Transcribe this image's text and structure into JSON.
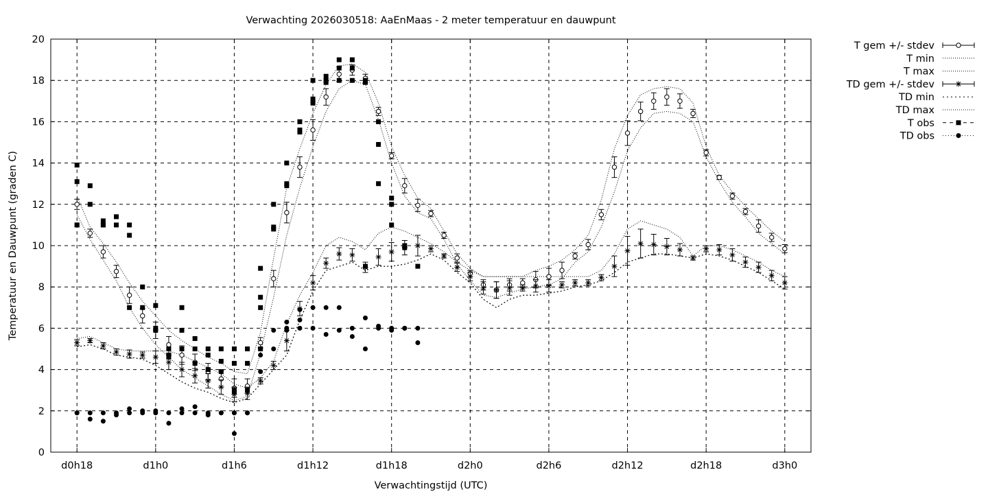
{
  "chart_data": {
    "type": "line",
    "title": "Verwachting 2026030518: AaEnMaas - 2 meter temperatuur en dauwpunt",
    "xlabel": "Verwachtingstijd (UTC)",
    "ylabel": "Temperatuur en Dauwpunt (graden C)",
    "xlim": [
      16,
      74
    ],
    "ylim": [
      0,
      20
    ],
    "grid": true,
    "legend_position": "outside-right",
    "x_ticks": [
      {
        "x": 18,
        "label": "d0h18"
      },
      {
        "x": 24,
        "label": "d1h0"
      },
      {
        "x": 30,
        "label": "d1h6"
      },
      {
        "x": 36,
        "label": "d1h12"
      },
      {
        "x": 42,
        "label": "d1h18"
      },
      {
        "x": 48,
        "label": "d2h0"
      },
      {
        "x": 54,
        "label": "d2h6"
      },
      {
        "x": 60,
        "label": "d2h12"
      },
      {
        "x": 66,
        "label": "d2h18"
      },
      {
        "x": 72,
        "label": "d3h0"
      }
    ],
    "y_ticks": [
      "0",
      "2",
      "4",
      "6",
      "8",
      "10",
      "12",
      "14",
      "16",
      "18",
      "20"
    ],
    "legend": [
      "T gem +/- stdev",
      "T min",
      "T max",
      "TD gem +/- stdev",
      "TD min",
      "TD max",
      "T obs",
      "TD obs"
    ],
    "series": [
      {
        "name": "T gem +/- stdev",
        "x": [
          18,
          19,
          20,
          21,
          22,
          23,
          24,
          25,
          26,
          27,
          28,
          29,
          30,
          31,
          32,
          33,
          34,
          35,
          36,
          37,
          38,
          39,
          40,
          41,
          42,
          43,
          44,
          45,
          46,
          47,
          48,
          49,
          50,
          51,
          52,
          53,
          54,
          55,
          56,
          57,
          58,
          59,
          60,
          61,
          62,
          63,
          64,
          65,
          66,
          67,
          68,
          69,
          70,
          71,
          72
        ],
        "y": [
          12.0,
          10.6,
          9.7,
          8.75,
          7.6,
          6.6,
          5.9,
          5.2,
          4.7,
          4.35,
          3.9,
          3.55,
          3.1,
          3.2,
          5.3,
          8.4,
          11.6,
          13.8,
          15.6,
          17.2,
          18.3,
          18.5,
          18.1,
          16.5,
          14.35,
          12.9,
          11.95,
          11.55,
          10.5,
          9.4,
          8.65,
          8.1,
          7.85,
          8.1,
          8.2,
          8.35,
          8.5,
          8.8,
          9.5,
          10.05,
          11.5,
          13.8,
          15.45,
          16.5,
          17.0,
          17.2,
          17.0,
          16.4,
          14.5,
          13.3,
          12.4,
          11.65,
          10.95,
          10.4,
          9.85
        ],
        "stdev": [
          0.25,
          0.2,
          0.3,
          0.3,
          0.4,
          0.35,
          0.4,
          0.4,
          0.45,
          0.4,
          0.4,
          0.4,
          0.45,
          0.35,
          0.25,
          0.4,
          0.5,
          0.5,
          0.5,
          0.4,
          0.35,
          0.25,
          0.2,
          0.2,
          0.15,
          0.35,
          0.3,
          0.15,
          0.15,
          0.2,
          0.15,
          0.25,
          0.4,
          0.3,
          0.2,
          0.4,
          0.4,
          0.4,
          0.15,
          0.25,
          0.25,
          0.5,
          0.6,
          0.45,
          0.4,
          0.4,
          0.35,
          0.2,
          0.15,
          0.1,
          0.15,
          0.15,
          0.3,
          0.2,
          0.2
        ]
      },
      {
        "name": "T min",
        "x": [
          18,
          19,
          20,
          21,
          22,
          23,
          24,
          25,
          26,
          27,
          28,
          29,
          30,
          31,
          32,
          33,
          34,
          35,
          36,
          37,
          38,
          39,
          40,
          41,
          42,
          43,
          44,
          45,
          46,
          47,
          48,
          49,
          50,
          51,
          52,
          53,
          54,
          55,
          56,
          57,
          58,
          59,
          60,
          61,
          62,
          63,
          64,
          65,
          66,
          67,
          68,
          69,
          70,
          71,
          72
        ],
        "y": [
          11.5,
          10.3,
          9.3,
          8.3,
          7.0,
          6.0,
          5.2,
          4.6,
          4.0,
          3.6,
          3.2,
          2.8,
          2.5,
          2.7,
          4.8,
          7.5,
          10.5,
          12.8,
          14.8,
          16.5,
          17.6,
          18.0,
          17.8,
          16.1,
          14.0,
          12.4,
          11.6,
          11.3,
          10.3,
          9.1,
          8.3,
          7.6,
          7.5,
          7.7,
          7.9,
          8.0,
          8.1,
          8.4,
          9.2,
          9.7,
          10.9,
          12.6,
          14.6,
          15.7,
          16.4,
          16.5,
          16.4,
          16.0,
          14.3,
          13.1,
          12.1,
          11.4,
          10.6,
          10.1,
          9.6
        ]
      },
      {
        "name": "T max",
        "x": [
          18,
          19,
          20,
          21,
          22,
          23,
          24,
          25,
          26,
          27,
          28,
          29,
          30,
          31,
          32,
          33,
          34,
          35,
          36,
          37,
          38,
          39,
          40,
          41,
          42,
          43,
          44,
          45,
          46,
          47,
          48,
          49,
          50,
          51,
          52,
          53,
          54,
          55,
          56,
          57,
          58,
          59,
          60,
          61,
          62,
          63,
          64,
          65,
          66,
          67,
          68,
          69,
          70,
          71,
          72
        ],
        "y": [
          12.4,
          10.9,
          10.1,
          9.2,
          8.2,
          7.3,
          6.6,
          5.9,
          5.4,
          5.0,
          4.6,
          4.3,
          3.9,
          3.8,
          5.8,
          9.4,
          12.8,
          14.7,
          16.4,
          17.8,
          18.7,
          18.8,
          18.4,
          16.9,
          14.8,
          13.4,
          12.3,
          11.8,
          10.7,
          9.6,
          8.9,
          8.5,
          8.5,
          8.5,
          8.5,
          8.8,
          9.0,
          9.3,
          9.8,
          10.5,
          12.2,
          14.7,
          16.3,
          17.3,
          17.6,
          17.7,
          17.6,
          16.9,
          14.8,
          13.4,
          12.6,
          11.9,
          11.3,
          10.7,
          10.2
        ]
      },
      {
        "name": "TD gem +/- stdev",
        "x": [
          18,
          19,
          20,
          21,
          22,
          23,
          24,
          25,
          26,
          27,
          28,
          29,
          30,
          31,
          32,
          33,
          34,
          35,
          36,
          37,
          38,
          39,
          40,
          41,
          42,
          43,
          44,
          45,
          46,
          47,
          48,
          49,
          50,
          51,
          52,
          53,
          54,
          55,
          56,
          57,
          58,
          59,
          60,
          61,
          62,
          63,
          64,
          65,
          66,
          67,
          68,
          69,
          70,
          71,
          72
        ],
        "y": [
          5.3,
          5.4,
          5.15,
          4.85,
          4.75,
          4.7,
          4.6,
          4.35,
          4.0,
          3.7,
          3.45,
          3.15,
          2.8,
          2.85,
          3.45,
          4.2,
          5.4,
          6.95,
          8.2,
          9.15,
          9.6,
          9.55,
          8.95,
          9.45,
          9.7,
          9.9,
          10.0,
          9.85,
          9.5,
          8.95,
          8.5,
          7.95,
          7.85,
          7.95,
          7.95,
          8.05,
          8.05,
          8.1,
          8.2,
          8.2,
          8.45,
          9.0,
          9.75,
          10.1,
          10.05,
          9.95,
          9.8,
          9.4,
          9.85,
          9.8,
          9.55,
          9.2,
          8.95,
          8.55,
          8.2
        ],
        "stdev": [
          0.15,
          0.1,
          0.15,
          0.15,
          0.2,
          0.15,
          0.3,
          0.35,
          0.35,
          0.35,
          0.35,
          0.35,
          0.35,
          0.3,
          0.15,
          0.2,
          0.5,
          0.35,
          0.35,
          0.25,
          0.3,
          0.3,
          0.25,
          0.4,
          0.45,
          0.35,
          0.5,
          0.15,
          0.1,
          0.2,
          0.2,
          0.3,
          0.4,
          0.35,
          0.15,
          0.3,
          0.3,
          0.15,
          0.15,
          0.15,
          0.15,
          0.5,
          0.7,
          0.7,
          0.5,
          0.4,
          0.3,
          0.1,
          0.15,
          0.25,
          0.3,
          0.25,
          0.25,
          0.25,
          0.3
        ]
      },
      {
        "name": "TD min",
        "x": [
          18,
          19,
          20,
          21,
          22,
          23,
          24,
          25,
          26,
          27,
          28,
          29,
          30,
          31,
          32,
          33,
          34,
          35,
          36,
          37,
          38,
          39,
          40,
          41,
          42,
          43,
          44,
          45,
          46,
          47,
          48,
          49,
          50,
          51,
          52,
          53,
          54,
          55,
          56,
          57,
          58,
          59,
          60,
          61,
          62,
          63,
          64,
          65,
          66,
          67,
          68,
          69,
          70,
          71,
          72
        ],
        "y": [
          5.1,
          5.2,
          5.0,
          4.7,
          4.6,
          4.5,
          4.2,
          3.8,
          3.4,
          3.1,
          2.9,
          2.6,
          2.4,
          2.6,
          3.3,
          4.0,
          4.7,
          6.4,
          7.8,
          8.8,
          9.0,
          9.2,
          8.8,
          9.0,
          9.0,
          9.1,
          9.3,
          9.6,
          9.3,
          8.7,
          8.2,
          7.4,
          7.0,
          7.4,
          7.6,
          7.6,
          7.7,
          7.8,
          8.0,
          8.1,
          8.3,
          8.7,
          9.2,
          9.4,
          9.6,
          9.6,
          9.5,
          9.4,
          9.6,
          9.5,
          9.3,
          9.0,
          8.7,
          8.3,
          7.9
        ]
      },
      {
        "name": "TD max",
        "x": [
          18,
          19,
          20,
          21,
          22,
          23,
          24,
          25,
          26,
          27,
          28,
          29,
          30,
          31,
          32,
          33,
          34,
          35,
          36,
          37,
          38,
          39,
          40,
          41,
          42,
          43,
          44,
          45,
          46,
          47,
          48,
          49,
          50,
          51,
          52,
          53,
          54,
          55,
          56,
          57,
          58,
          59,
          60,
          61,
          62,
          63,
          64,
          65,
          66,
          67,
          68,
          69,
          70,
          71,
          72
        ],
        "y": [
          5.5,
          5.6,
          5.3,
          5.0,
          4.9,
          4.9,
          4.9,
          4.9,
          4.7,
          4.4,
          4.1,
          3.8,
          3.3,
          3.1,
          3.6,
          4.4,
          6.2,
          7.6,
          8.7,
          10.0,
          10.4,
          10.2,
          9.8,
          10.6,
          10.9,
          10.7,
          10.4,
          10.1,
          9.7,
          9.2,
          8.8,
          8.5,
          8.5,
          8.5,
          8.5,
          8.5,
          8.5,
          8.5,
          8.5,
          8.5,
          8.8,
          9.6,
          10.8,
          11.2,
          11.0,
          10.8,
          10.4,
          9.5,
          10.0,
          10.0,
          9.8,
          9.5,
          9.2,
          8.8,
          8.5
        ]
      },
      {
        "name": "T obs",
        "x": [
          18,
          18,
          18,
          18,
          19,
          19,
          20,
          20,
          20,
          21,
          21,
          22,
          22,
          22,
          23,
          23,
          24,
          24,
          24,
          25,
          25,
          25,
          26,
          26,
          26,
          27,
          27,
          27,
          28,
          28,
          28,
          29,
          29,
          29,
          30,
          30,
          30,
          30,
          31,
          31,
          31,
          32,
          32,
          32,
          32,
          33,
          33,
          33,
          34,
          34,
          34,
          35,
          35,
          35,
          36,
          36,
          36,
          36,
          37,
          37,
          37,
          38,
          38,
          38,
          39,
          39,
          39,
          40,
          40,
          40,
          41,
          41,
          41,
          42,
          42,
          42,
          43,
          43,
          44
        ],
        "y": [
          13.9,
          13.1,
          11.0,
          11.0,
          12.9,
          12.0,
          11.2,
          11.0,
          11.0,
          11.4,
          11.0,
          11.0,
          10.5,
          7.0,
          8.0,
          7.0,
          7.1,
          6.0,
          5.9,
          5.0,
          4.7,
          4.6,
          7.0,
          5.9,
          5.0,
          5.5,
          5.0,
          4.3,
          5.0,
          4.7,
          4.0,
          5.0,
          4.4,
          3.9,
          5.0,
          4.3,
          3.0,
          2.9,
          5.0,
          4.3,
          3.0,
          8.9,
          7.5,
          7.0,
          5.0,
          12.0,
          10.9,
          10.8,
          14.0,
          13.0,
          12.9,
          16.0,
          15.6,
          15.5,
          18.0,
          17.1,
          16.9,
          17.0,
          18.2,
          17.9,
          18.0,
          19.0,
          18.6,
          18.0,
          19.0,
          18.6,
          18.0,
          18.0,
          17.9,
          9.0,
          16.0,
          14.9,
          13.0,
          12.3,
          12.0,
          11.0,
          10.0,
          9.9,
          9.0
        ]
      },
      {
        "name": "TD obs",
        "x": [
          18,
          18,
          19,
          19,
          20,
          20,
          21,
          21,
          22,
          22,
          23,
          23,
          24,
          24,
          25,
          25,
          26,
          26,
          27,
          27,
          28,
          28,
          29,
          29,
          30,
          30,
          30,
          31,
          31,
          32,
          32,
          32,
          33,
          33,
          34,
          34,
          34,
          35,
          35,
          35,
          36,
          36,
          37,
          37,
          38,
          38,
          39,
          39,
          40,
          40,
          41,
          41,
          42,
          42,
          43,
          43,
          44,
          44
        ],
        "y": [
          1.9,
          1.9,
          1.9,
          1.6,
          1.9,
          1.5,
          1.9,
          1.8,
          2.1,
          1.9,
          2.0,
          1.9,
          2.0,
          1.9,
          1.9,
          1.4,
          2.1,
          1.9,
          2.2,
          1.9,
          1.9,
          1.8,
          1.9,
          1.9,
          1.9,
          0.9,
          1.9,
          1.9,
          1.9,
          3.9,
          4.7,
          5.0,
          5.0,
          5.9,
          6.3,
          6.0,
          5.9,
          6.9,
          6.4,
          6.0,
          7.0,
          6.0,
          7.0,
          5.7,
          7.0,
          5.9,
          6.0,
          5.6,
          6.5,
          5.0,
          6.1,
          6.0,
          6.0,
          5.9,
          6.0,
          6.0,
          6.0,
          5.3
        ]
      }
    ]
  }
}
